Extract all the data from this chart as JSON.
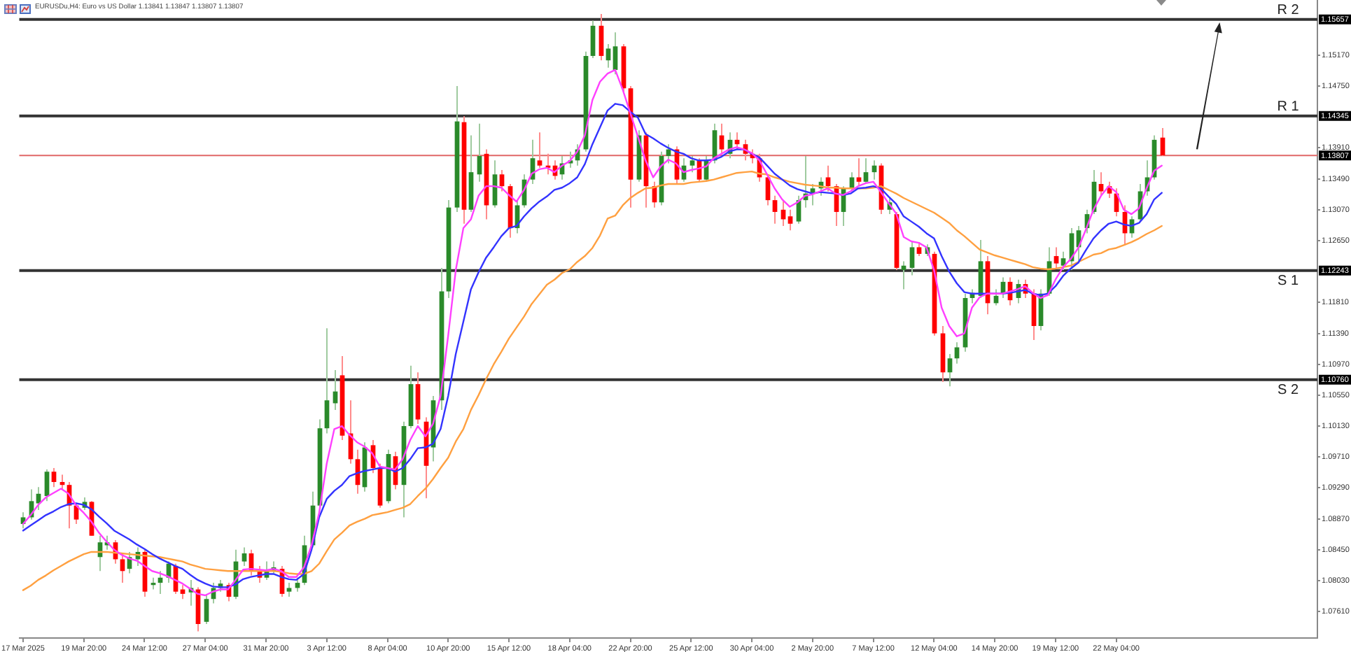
{
  "chart_data": {
    "type": "candlestick",
    "title": "EURUSDu,H4: Euro vs US Dollar 1.13841 1.13847 1.13807 1.13807",
    "categories": [
      "17 Mar 2025",
      null,
      null,
      null,
      null,
      null,
      null,
      null,
      "19 Mar 20:00",
      null,
      null,
      null,
      null,
      null,
      null,
      null,
      "24 Mar 12:00",
      null,
      null,
      null,
      null,
      null,
      null,
      null,
      "27 Mar 04:00",
      null,
      null,
      null,
      null,
      null,
      null,
      null,
      "31 Mar 20:00",
      null,
      null,
      null,
      null,
      null,
      null,
      null,
      "3 Apr 12:00",
      null,
      null,
      null,
      null,
      null,
      null,
      null,
      "8 Apr 04:00",
      null,
      null,
      null,
      null,
      null,
      null,
      null,
      "10 Apr 20:00",
      null,
      null,
      null,
      null,
      null,
      null,
      null,
      "15 Apr 12:00",
      null,
      null,
      null,
      null,
      null,
      null,
      null,
      "18 Apr 04:00",
      null,
      null,
      null,
      null,
      null,
      null,
      null,
      "22 Apr 20:00",
      null,
      null,
      null,
      null,
      null,
      null,
      null,
      "25 Apr 12:00",
      null,
      null,
      null,
      null,
      null,
      null,
      null,
      "30 Apr 04:00",
      null,
      null,
      null,
      null,
      null,
      null,
      null,
      "2 May 20:00",
      null,
      null,
      null,
      null,
      null,
      null,
      null,
      "7 May 12:00",
      null,
      null,
      null,
      null,
      null,
      null,
      null,
      "12 May 04:00",
      null,
      null,
      null,
      null,
      null,
      null,
      null,
      "14 May 20:00",
      null,
      null,
      null,
      null,
      null,
      null,
      null,
      "19 May 12:00",
      null,
      null,
      null,
      null,
      null,
      null,
      null,
      "22 May 04:00",
      null,
      null,
      null,
      null,
      null,
      null,
      null,
      null,
      null,
      null,
      null,
      null,
      null,
      null,
      null,
      null,
      null,
      null,
      null,
      null,
      null,
      null,
      null,
      null,
      null,
      null
    ],
    "ohlc": [
      [
        1.088,
        1.0896,
        1.0874,
        1.0889
      ],
      [
        1.0889,
        1.0927,
        1.0886,
        1.0911
      ],
      [
        1.0908,
        1.093,
        1.0899,
        1.0921
      ],
      [
        1.0918,
        1.0954,
        1.0911,
        1.0951
      ],
      [
        1.0951,
        1.0956,
        1.093,
        1.0937
      ],
      [
        1.0937,
        1.0947,
        1.0927,
        1.0933
      ],
      [
        1.0933,
        1.0937,
        1.0874,
        1.0905
      ],
      [
        1.0905,
        1.0908,
        1.088,
        1.0886
      ],
      [
        1.0902,
        1.0916,
        1.0899,
        1.091
      ],
      [
        1.091,
        1.0911,
        1.0864,
        1.0864
      ],
      [
        1.0835,
        1.0864,
        1.0816,
        1.0855
      ],
      [
        1.0851,
        1.0864,
        1.0845,
        1.0855
      ],
      [
        1.0855,
        1.0858,
        1.0826,
        1.0832
      ],
      [
        1.0832,
        1.0839,
        1.08,
        1.0816
      ],
      [
        1.0819,
        1.0842,
        1.0813,
        1.0835
      ],
      [
        1.0832,
        1.0848,
        1.0823,
        1.0842
      ],
      [
        1.0842,
        1.0845,
        1.0781,
        1.0788
      ],
      [
        1.0797,
        1.0807,
        1.0791,
        1.08
      ],
      [
        1.08,
        1.0816,
        1.0785,
        1.0807
      ],
      [
        1.0807,
        1.0829,
        1.08,
        1.0826
      ],
      [
        1.0823,
        1.0826,
        1.0785,
        1.0788
      ],
      [
        1.0791,
        1.0797,
        1.0778,
        1.0785
      ],
      [
        1.0787,
        1.0804,
        1.0769,
        1.0793
      ],
      [
        1.0791,
        1.0794,
        1.0734,
        1.0744
      ],
      [
        1.0747,
        1.0785,
        1.0744,
        1.0778
      ],
      [
        1.0778,
        1.08,
        1.0772,
        1.0793
      ],
      [
        1.0793,
        1.0804,
        1.0788,
        1.0799
      ],
      [
        1.0797,
        1.08,
        1.0775,
        1.0781
      ],
      [
        1.0781,
        1.0845,
        1.0778,
        1.0829
      ],
      [
        1.0829,
        1.0848,
        1.0823,
        1.084
      ],
      [
        1.084,
        1.0845,
        1.081,
        1.0816
      ],
      [
        1.0816,
        1.0823,
        1.08,
        1.0807
      ],
      [
        1.0807,
        1.0829,
        1.0804,
        1.0816
      ],
      [
        1.0816,
        1.0829,
        1.0813,
        1.0821
      ],
      [
        1.0819,
        1.0823,
        1.0781,
        1.0785
      ],
      [
        1.0788,
        1.08,
        1.0781,
        1.0793
      ],
      [
        1.0793,
        1.0807,
        1.0788,
        1.08
      ],
      [
        1.08,
        1.0864,
        1.0797,
        1.0851
      ],
      [
        1.0851,
        1.0924,
        1.0848,
        1.0905
      ],
      [
        1.0905,
        1.1022,
        1.0902,
        1.101
      ],
      [
        1.101,
        1.1146,
        1.1003,
        1.1048
      ],
      [
        1.1044,
        1.1089,
        1.1035,
        1.106
      ],
      [
        1.1082,
        1.1108,
        1.0994,
        1.1
      ],
      [
        1.1003,
        1.1048,
        1.0962,
        1.0968
      ],
      [
        1.0968,
        1.0981,
        1.0921,
        1.0933
      ],
      [
        1.093,
        1.0991,
        1.0924,
        1.0984
      ],
      [
        1.0987,
        1.0994,
        1.0949,
        1.0956
      ],
      [
        1.0956,
        1.0962,
        1.0902,
        1.0905
      ],
      [
        1.0911,
        1.0981,
        1.0908,
        1.0975
      ],
      [
        1.0972,
        1.0978,
        1.0927,
        1.0933
      ],
      [
        1.0933,
        1.1019,
        1.0889,
        1.1013
      ],
      [
        1.1013,
        1.1095,
        1.101,
        1.107
      ],
      [
        1.107,
        1.1086,
        1.1016,
        1.1022
      ],
      [
        1.1019,
        1.1025,
        1.0915,
        1.0959
      ],
      [
        1.0984,
        1.1054,
        1.0965,
        1.1048
      ],
      [
        1.1048,
        1.1228,
        1.1035,
        1.1196
      ],
      [
        1.1196,
        1.132,
        1.1187,
        1.131
      ],
      [
        1.131,
        1.1475,
        1.1304,
        1.1427
      ],
      [
        1.1426,
        1.1434,
        1.1288,
        1.1307
      ],
      [
        1.1307,
        1.1408,
        1.1304,
        1.1358
      ],
      [
        1.1355,
        1.1424,
        1.1345,
        1.138
      ],
      [
        1.1383,
        1.1389,
        1.1294,
        1.1313
      ],
      [
        1.1313,
        1.1374,
        1.131,
        1.1355
      ],
      [
        1.1355,
        1.1361,
        1.1332,
        1.1339
      ],
      [
        1.1339,
        1.1342,
        1.1269,
        1.1282
      ],
      [
        1.1282,
        1.132,
        1.1275,
        1.1313
      ],
      [
        1.1313,
        1.1355,
        1.131,
        1.1348
      ],
      [
        1.1348,
        1.1402,
        1.1342,
        1.1377
      ],
      [
        1.1374,
        1.1412,
        1.1364,
        1.1367
      ],
      [
        1.1367,
        1.1383,
        1.1355,
        1.1364
      ],
      [
        1.1367,
        1.1374,
        1.1348,
        1.1353
      ],
      [
        1.1355,
        1.138,
        1.1348,
        1.137
      ],
      [
        1.137,
        1.1386,
        1.1364,
        1.1374
      ],
      [
        1.1374,
        1.1396,
        1.1367,
        1.1389
      ],
      [
        1.1389,
        1.1522,
        1.1386,
        1.1516
      ],
      [
        1.1516,
        1.1564,
        1.1513,
        1.1557
      ],
      [
        1.1557,
        1.1573,
        1.151,
        1.1516
      ],
      [
        1.151,
        1.1532,
        1.15,
        1.1526
      ],
      [
        1.1497,
        1.1548,
        1.1491,
        1.1529
      ],
      [
        1.1529,
        1.1532,
        1.1465,
        1.1472
      ],
      [
        1.1472,
        1.1475,
        1.131,
        1.1348
      ],
      [
        1.1348,
        1.1415,
        1.1345,
        1.1408
      ],
      [
        1.1408,
        1.1412,
        1.131,
        1.1339
      ],
      [
        1.1339,
        1.1345,
        1.131,
        1.1317
      ],
      [
        1.1317,
        1.1386,
        1.1313,
        1.138
      ],
      [
        1.138,
        1.1396,
        1.137,
        1.1389
      ],
      [
        1.1389,
        1.1393,
        1.1342,
        1.1348
      ],
      [
        1.1348,
        1.1377,
        1.1345,
        1.1367
      ],
      [
        1.1367,
        1.138,
        1.1358,
        1.1374
      ],
      [
        1.1374,
        1.1377,
        1.1345,
        1.1348
      ],
      [
        1.1348,
        1.138,
        1.1345,
        1.1374
      ],
      [
        1.1374,
        1.1424,
        1.137,
        1.1415
      ],
      [
        1.1408,
        1.1424,
        1.1383,
        1.1389
      ],
      [
        1.1383,
        1.1412,
        1.1377,
        1.1402
      ],
      [
        1.1402,
        1.1412,
        1.1389,
        1.1396
      ],
      [
        1.1396,
        1.1402,
        1.1374,
        1.1383
      ],
      [
        1.1383,
        1.1389,
        1.137,
        1.1377
      ],
      [
        1.1377,
        1.1383,
        1.1345,
        1.1351
      ],
      [
        1.1351,
        1.1355,
        1.1313,
        1.132
      ],
      [
        1.132,
        1.1326,
        1.1288,
        1.1304
      ],
      [
        1.1307,
        1.132,
        1.1285,
        1.1294
      ],
      [
        1.1298,
        1.1307,
        1.1279,
        1.1288
      ],
      [
        1.1291,
        1.1326,
        1.1288,
        1.132
      ],
      [
        1.132,
        1.138,
        1.131,
        1.1329
      ],
      [
        1.1329,
        1.1342,
        1.1313,
        1.1336
      ],
      [
        1.1336,
        1.1351,
        1.1326,
        1.1345
      ],
      [
        1.1351,
        1.1367,
        1.1332,
        1.1339
      ],
      [
        1.1339,
        1.1342,
        1.1285,
        1.1304
      ],
      [
        1.1304,
        1.1339,
        1.1285,
        1.1336
      ],
      [
        1.1336,
        1.1358,
        1.1332,
        1.1351
      ],
      [
        1.1351,
        1.1377,
        1.1339,
        1.1345
      ],
      [
        1.1345,
        1.1377,
        1.1342,
        1.1358
      ],
      [
        1.1358,
        1.1374,
        1.1348,
        1.1367
      ],
      [
        1.1367,
        1.137,
        1.1301,
        1.1307
      ],
      [
        1.1307,
        1.1323,
        1.1301,
        1.1317
      ],
      [
        1.1301,
        1.1304,
        1.1225,
        1.1228
      ],
      [
        1.1225,
        1.1237,
        1.1199,
        1.1231
      ],
      [
        1.1228,
        1.1263,
        1.1218,
        1.1256
      ],
      [
        1.1256,
        1.1263,
        1.1244,
        1.1247
      ],
      [
        1.1247,
        1.126,
        1.1244,
        1.1256
      ],
      [
        1.1247,
        1.125,
        1.1136,
        1.1139
      ],
      [
        1.1139,
        1.1149,
        1.1073,
        1.1086
      ],
      [
        1.1086,
        1.1111,
        1.1067,
        1.1105
      ],
      [
        1.1105,
        1.1127,
        1.1098,
        1.112
      ],
      [
        1.112,
        1.1193,
        1.1114,
        1.1187
      ],
      [
        1.1187,
        1.1199,
        1.118,
        1.1194
      ],
      [
        1.119,
        1.1266,
        1.1187,
        1.1237
      ],
      [
        1.1237,
        1.1244,
        1.1165,
        1.118
      ],
      [
        1.118,
        1.1199,
        1.1177,
        1.119
      ],
      [
        1.1193,
        1.1215,
        1.1187,
        1.1209
      ],
      [
        1.1209,
        1.1215,
        1.1177,
        1.1184
      ],
      [
        1.1187,
        1.1212,
        1.118,
        1.1206
      ],
      [
        1.1206,
        1.1212,
        1.1187,
        1.1193
      ],
      [
        1.1193,
        1.1199,
        1.113,
        1.1149
      ],
      [
        1.1149,
        1.1199,
        1.1143,
        1.1193
      ],
      [
        1.1193,
        1.1256,
        1.119,
        1.1237
      ],
      [
        1.1244,
        1.1256,
        1.1228,
        1.1234
      ],
      [
        1.1231,
        1.125,
        1.1225,
        1.1241
      ],
      [
        1.1237,
        1.1282,
        1.1225,
        1.1275
      ],
      [
        1.1256,
        1.1285,
        1.1234,
        1.1279
      ],
      [
        1.1282,
        1.1307,
        1.1275,
        1.1301
      ],
      [
        1.1304,
        1.1361,
        1.1301,
        1.1345
      ],
      [
        1.1342,
        1.1358,
        1.1326,
        1.1332
      ],
      [
        1.1339,
        1.1345,
        1.1323,
        1.1329
      ],
      [
        1.1329,
        1.1336,
        1.1298,
        1.1304
      ],
      [
        1.1304,
        1.1313,
        1.126,
        1.1275
      ],
      [
        1.1275,
        1.1298,
        1.1269,
        1.1294
      ],
      [
        1.1294,
        1.1342,
        1.1291,
        1.1332
      ],
      [
        1.1332,
        1.1374,
        1.1326,
        1.1351
      ],
      [
        1.1351,
        1.1408,
        1.1348,
        1.1402
      ],
      [
        1.1405,
        1.1418,
        1.138,
        1.1381
      ],
      null,
      null,
      null,
      null,
      null,
      null,
      null,
      null,
      null,
      null,
      null,
      null,
      null,
      null,
      null,
      null,
      null,
      null,
      null,
      null
    ],
    "colors": [
      "#2a8a2a",
      "#2a8a2a",
      "#2a8a2a",
      "#2a8a2a",
      "#ff0000",
      "#ff0000",
      "#ff0000",
      "#ff0000",
      "#2a8a2a",
      "#ff0000",
      "#2a8a2a",
      "#2a8a2a",
      "#ff0000",
      "#ff0000",
      "#2a8a2a",
      "#2a8a2a",
      "#ff0000",
      "#2a8a2a",
      "#2a8a2a",
      "#2a8a2a",
      "#ff0000",
      "#ff0000",
      "#2a8a2a",
      "#ff0000",
      "#2a8a2a",
      "#2a8a2a",
      "#2a8a2a",
      "#ff0000",
      "#2a8a2a",
      "#2a8a2a",
      "#ff0000",
      "#ff0000",
      "#2a8a2a",
      "#2a8a2a",
      "#ff0000",
      "#2a8a2a",
      "#2a8a2a",
      "#2a8a2a",
      "#2a8a2a",
      "#2a8a2a",
      "#2a8a2a",
      "#2a8a2a",
      "#ff0000",
      "#ff0000",
      "#ff0000",
      "#2a8a2a",
      "#ff0000",
      "#ff0000",
      "#2a8a2a",
      "#ff0000",
      "#2a8a2a",
      "#2a8a2a",
      "#ff0000",
      "#ff0000",
      "#2a8a2a",
      "#2a8a2a",
      "#2a8a2a",
      "#2a8a2a",
      "#ff0000",
      "#2a8a2a",
      "#2a8a2a",
      "#ff0000",
      "#2a8a2a",
      "#ff0000",
      "#ff0000",
      "#2a8a2a",
      "#2a8a2a",
      "#2a8a2a",
      "#ff0000",
      "#ff0000",
      "#ff0000",
      "#2a8a2a",
      "#2a8a2a",
      "#2a8a2a",
      "#2a8a2a",
      "#2a8a2a",
      "#ff0000",
      "#2a8a2a",
      "#2a8a2a",
      "#ff0000",
      "#ff0000",
      "#2a8a2a",
      "#ff0000",
      "#ff0000",
      "#2a8a2a",
      "#2a8a2a",
      "#ff0000",
      "#2a8a2a",
      "#2a8a2a",
      "#ff0000",
      "#2a8a2a",
      "#2a8a2a",
      "#ff0000",
      "#2a8a2a",
      "#ff0000",
      "#ff0000",
      "#ff0000",
      "#ff0000",
      "#ff0000",
      "#ff0000",
      "#ff0000",
      "#ff0000",
      "#2a8a2a",
      "#2a8a2a",
      "#2a8a2a",
      "#2a8a2a",
      "#ff0000",
      "#ff0000",
      "#2a8a2a",
      "#2a8a2a",
      "#ff0000",
      "#2a8a2a",
      "#2a8a2a",
      "#ff0000",
      "#2a8a2a",
      "#ff0000",
      "#2a8a2a",
      "#2a8a2a",
      "#ff0000",
      "#2a8a2a",
      "#ff0000",
      "#ff0000",
      "#2a8a2a",
      "#2a8a2a",
      "#2a8a2a",
      "#2a8a2a",
      "#2a8a2a",
      "#ff0000",
      "#2a8a2a",
      "#2a8a2a",
      "#ff0000",
      "#2a8a2a",
      "#ff0000",
      "#ff0000",
      "#2a8a2a",
      "#2a8a2a",
      "#ff0000",
      "#2a8a2a",
      "#2a8a2a",
      "#2a8a2a",
      "#2a8a2a",
      "#2a8a2a",
      "#ff0000",
      "#ff0000",
      "#ff0000",
      "#ff0000",
      "#2a8a2a",
      "#2a8a2a",
      "#2a8a2a",
      "#2a8a2a",
      "#ff0000",
      null,
      null,
      null,
      null,
      null,
      null,
      null,
      null,
      null,
      null,
      null,
      null,
      null,
      null,
      null,
      null,
      null,
      null,
      null,
      null
    ],
    "series": [
      {
        "type": "line",
        "color": "#ff40ff",
        "values": [
          1.088,
          1.0892,
          1.0906,
          1.0916,
          1.0922,
          1.0928,
          1.0921,
          1.0905,
          1.0895,
          1.0883,
          1.0868,
          1.0856,
          1.0845,
          1.0838,
          1.0833,
          1.083,
          1.0823,
          1.0816,
          1.0813,
          1.0809,
          1.0804,
          1.0799,
          1.0792,
          1.0785,
          1.0783,
          1.0788,
          1.0791,
          1.0791,
          1.0804,
          1.0818,
          1.0819,
          1.0818,
          1.0817,
          1.0819,
          1.0816,
          1.0808,
          1.0808,
          1.0821,
          1.0851,
          1.0895,
          1.0962,
          1.1009,
          1.1013,
          1.1001,
          1.0991,
          1.0985,
          1.0976,
          1.0958,
          1.0956,
          1.0954,
          1.0968,
          1.0994,
          1.1013,
          1.0999,
          1.1016,
          1.1054,
          1.1136,
          1.1225,
          1.1282,
          1.1294,
          1.1326,
          1.1339,
          1.1339,
          1.1337,
          1.1327,
          1.1318,
          1.1334,
          1.1356,
          1.1362,
          1.1364,
          1.1358,
          1.1367,
          1.1373,
          1.1386,
          1.1408,
          1.1456,
          1.1481,
          1.1492,
          1.1497,
          1.147,
          1.1438,
          1.1406,
          1.1374,
          1.1351,
          1.1366,
          1.1375,
          1.137,
          1.1358,
          1.1361,
          1.1363,
          1.1366,
          1.1377,
          1.1383,
          1.1389,
          1.1392,
          1.1389,
          1.1384,
          1.1374,
          1.1355,
          1.1336,
          1.1321,
          1.1311,
          1.1317,
          1.1326,
          1.1328,
          1.1332,
          1.1336,
          1.1329,
          1.1327,
          1.1332,
          1.1339,
          1.1343,
          1.1345,
          1.1331,
          1.1316,
          1.1302,
          1.127,
          1.1264,
          1.1262,
          1.1256,
          1.1225,
          1.1174,
          1.1149,
          1.1135,
          1.1139,
          1.1174,
          1.1188,
          1.1193,
          1.1193,
          1.1193,
          1.1196,
          1.1199,
          1.1203,
          1.1194,
          1.1187,
          1.1191,
          1.1212,
          1.1229,
          1.124,
          1.1255,
          1.128,
          1.1307,
          1.1326,
          1.1339,
          1.1331,
          1.1307,
          1.1301,
          1.1309,
          1.1336,
          1.136,
          1.1367,
          null,
          null,
          null,
          null,
          null,
          null,
          null,
          null,
          null,
          null,
          null,
          null,
          null,
          null,
          null,
          null,
          null,
          null,
          null,
          null
        ]
      },
      {
        "type": "line",
        "color": "#3333ff",
        "values": [
          1.0871,
          1.0878,
          1.0885,
          1.0892,
          1.0897,
          1.0903,
          1.0907,
          1.0908,
          1.0906,
          1.09,
          1.089,
          1.0881,
          1.0871,
          1.0865,
          1.0859,
          1.0852,
          1.0846,
          1.0839,
          1.0833,
          1.0828,
          1.0823,
          1.0819,
          1.0811,
          1.0804,
          1.0799,
          1.0795,
          1.0794,
          1.0794,
          1.0798,
          1.0805,
          1.0808,
          1.081,
          1.0812,
          1.0812,
          1.0808,
          1.0805,
          1.0804,
          1.0812,
          1.0845,
          1.0889,
          1.0914,
          1.0925,
          1.0933,
          1.0945,
          1.0949,
          1.0952,
          1.0954,
          1.0956,
          1.0956,
          1.0951,
          1.0956,
          1.0968,
          1.0983,
          1.0984,
          1.0989,
          1.1009,
          1.1054,
          1.1111,
          1.1155,
          1.1199,
          1.1222,
          1.1242,
          1.1256,
          1.1271,
          1.1282,
          1.1285,
          1.1298,
          1.1309,
          1.1318,
          1.1325,
          1.1334,
          1.1337,
          1.1343,
          1.1351,
          1.1369,
          1.1396,
          1.1419,
          1.1442,
          1.1451,
          1.1449,
          1.144,
          1.1432,
          1.141,
          1.1404,
          1.1397,
          1.1391,
          1.1386,
          1.1383,
          1.1377,
          1.1374,
          1.1374,
          1.1375,
          1.1379,
          1.1386,
          1.1389,
          1.1389,
          1.1383,
          1.1378,
          1.1367,
          1.1356,
          1.1348,
          1.134,
          1.1335,
          1.1332,
          1.1329,
          1.1331,
          1.133,
          1.1329,
          1.1327,
          1.1329,
          1.1336,
          1.1337,
          1.1339,
          1.1336,
          1.1325,
          1.1315,
          1.1298,
          1.1291,
          1.1284,
          1.1275,
          1.1268,
          1.1244,
          1.1223,
          1.1207,
          1.1195,
          1.1193,
          1.1193,
          1.1193,
          1.1193,
          1.1193,
          1.1194,
          1.1196,
          1.1198,
          1.1193,
          1.1191,
          1.1193,
          1.1203,
          1.1217,
          1.1227,
          1.1235,
          1.1252,
          1.1268,
          1.1279,
          1.1288,
          1.1291,
          1.1287,
          1.1285,
          1.1289,
          1.1301,
          1.1321,
          1.133,
          null,
          null,
          null,
          null,
          null,
          null,
          null,
          null,
          null,
          null,
          null,
          null,
          null,
          null,
          null,
          null,
          null,
          null,
          null,
          null
        ]
      },
      {
        "type": "line",
        "color": "#ffa040",
        "values": [
          1.079,
          1.0796,
          1.0804,
          1.081,
          1.0817,
          1.0823,
          1.0829,
          1.0834,
          1.0839,
          1.0842,
          1.0842,
          1.0842,
          1.0841,
          1.084,
          1.0839,
          1.0838,
          1.0837,
          1.0836,
          1.0835,
          1.0833,
          1.0831,
          1.0829,
          1.0825,
          1.0822,
          1.0819,
          1.0818,
          1.0817,
          1.0816,
          1.0816,
          1.0816,
          1.0816,
          1.0816,
          1.0816,
          1.0816,
          1.0815,
          1.0813,
          1.0812,
          1.0812,
          1.0816,
          1.0826,
          1.0843,
          1.0859,
          1.0868,
          1.0878,
          1.0883,
          1.0887,
          1.0892,
          1.0894,
          1.0896,
          1.0899,
          1.0902,
          1.0907,
          1.0918,
          1.0928,
          1.0941,
          1.0956,
          1.097,
          1.0992,
          1.1009,
          1.1035,
          1.1055,
          1.1077,
          1.1097,
          1.1114,
          1.1132,
          1.1147,
          1.1162,
          1.1179,
          1.1192,
          1.1205,
          1.1212,
          1.1221,
          1.1226,
          1.1236,
          1.1244,
          1.1255,
          1.1272,
          1.1295,
          1.1299,
          1.1313,
          1.1323,
          1.133,
          1.1336,
          1.1337,
          1.134,
          1.1342,
          1.1342,
          1.1342,
          1.1344,
          1.1345,
          1.1346,
          1.1348,
          1.1351,
          1.1354,
          1.1357,
          1.1358,
          1.1359,
          1.1356,
          1.1355,
          1.1351,
          1.1348,
          1.1345,
          1.1343,
          1.1341,
          1.134,
          1.1339,
          1.1337,
          1.1337,
          1.1336,
          1.1336,
          1.1336,
          1.1336,
          1.1337,
          1.1339,
          1.1334,
          1.1329,
          1.1323,
          1.1318,
          1.1313,
          1.1308,
          1.1303,
          1.1296,
          1.1289,
          1.1279,
          1.1271,
          1.1262,
          1.1253,
          1.1249,
          1.1245,
          1.1242,
          1.1239,
          1.1236,
          1.1233,
          1.1229,
          1.1227,
          1.1226,
          1.1227,
          1.1229,
          1.1231,
          1.1236,
          1.1241,
          1.1246,
          1.1248,
          1.1253,
          1.1255,
          1.1259,
          1.1263,
          1.1268,
          1.1274,
          1.1279,
          1.1285,
          null,
          null,
          null,
          null,
          null,
          null,
          null,
          null,
          null,
          null,
          null,
          null,
          null,
          null,
          null,
          null,
          null,
          null,
          null,
          null
        ]
      }
    ],
    "ylim": [
      1.0725,
      1.1592
    ],
    "yticks": [
      {
        "value": 1.1517,
        "label": "1.15170"
      },
      {
        "value": 1.1475,
        "label": "1.14750"
      },
      {
        "value": 1.1391,
        "label": "1.13910"
      },
      {
        "value": 1.1349,
        "label": "1.13490"
      },
      {
        "value": 1.1307,
        "label": "1.13070"
      },
      {
        "value": 1.1265,
        "label": "1.12650"
      },
      {
        "value": 1.1181,
        "label": "1.11810"
      },
      {
        "value": 1.1139,
        "label": "1.11390"
      },
      {
        "value": 1.1097,
        "label": "1.10970"
      },
      {
        "value": 1.1055,
        "label": "1.10550"
      },
      {
        "value": 1.1013,
        "label": "1.10130"
      },
      {
        "value": 1.0971,
        "label": "1.09710"
      },
      {
        "value": 1.0929,
        "label": "1.09290"
      },
      {
        "value": 1.0887,
        "label": "1.08870"
      },
      {
        "value": 1.0845,
        "label": "1.08450"
      },
      {
        "value": 1.0803,
        "label": "1.08030"
      },
      {
        "value": 1.0761,
        "label": "1.07610"
      }
    ],
    "ref_lines": [
      {
        "axis": "y",
        "value": 1.15657,
        "label": "R 2",
        "color": "#333333"
      },
      {
        "axis": "y",
        "value": 1.14345,
        "label": "R 1",
        "color": "#333333"
      },
      {
        "axis": "y",
        "value": 1.13807,
        "color": "#e06666"
      },
      {
        "axis": "y",
        "value": 1.12243,
        "label": "S 1",
        "color": "#333333"
      },
      {
        "axis": "y",
        "value": 1.1076,
        "label": "S 2",
        "color": "#333333"
      }
    ],
    "annotations": [
      {
        "text": "1.15657",
        "y": 1.15657
      },
      {
        "text": "1.14345",
        "y": 1.14345
      },
      {
        "text": "1.13807",
        "y": 1.13807
      },
      {
        "text": "1.12243",
        "y": 1.12243
      },
      {
        "text": "1.10760",
        "y": 1.1076
      }
    ],
    "legend": false
  }
}
